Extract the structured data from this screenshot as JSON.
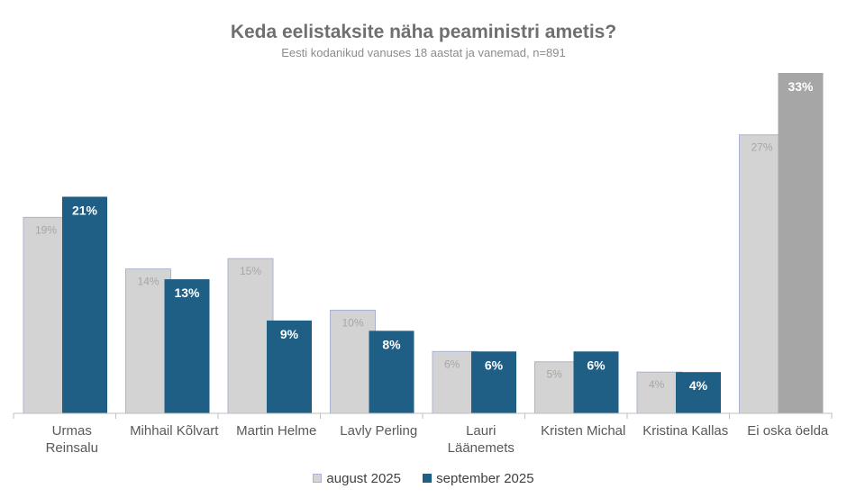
{
  "chart_data": {
    "type": "bar",
    "title": "Keda eelistaksite näha peaministri ametis?",
    "subtitle": "Eesti kodanikud vanuses 18 aastat ja vanemad, n=891",
    "categories": [
      [
        "Urmas",
        "Reinsalu"
      ],
      [
        "Mihhail Kõlvart"
      ],
      [
        "Martin Helme"
      ],
      [
        "Lavly Perling"
      ],
      [
        "Lauri",
        "Läänemets"
      ],
      [
        "Kristen Michal"
      ],
      [
        "Kristina Kallas"
      ],
      [
        "Ei oska öelda"
      ]
    ],
    "series": [
      {
        "name": "august 2025",
        "values": [
          19,
          14,
          15,
          10,
          6,
          5,
          4,
          27
        ],
        "labels": [
          "19%",
          "14%",
          "15%",
          "10%",
          "6%",
          "5%",
          "4%",
          "27%"
        ]
      },
      {
        "name": "september 2025",
        "values": [
          21,
          13,
          9,
          8,
          6,
          6,
          4,
          33
        ],
        "labels": [
          "21%",
          "13%",
          "9%",
          "8%",
          "6%",
          "6%",
          "4%",
          "33%"
        ]
      }
    ],
    "ylim": [
      0,
      33
    ],
    "grid": false,
    "legend_position": "bottom",
    "colors": {
      "august": "#d3d3d3",
      "august_border": "#a9b4d4",
      "september": "#1f5f85",
      "last_september": "#a6a6a6",
      "last_august": "#d3d3d3"
    }
  },
  "legend": [
    {
      "label": "august 2025",
      "color": "#d3d3d3"
    },
    {
      "label": "september 2025",
      "color": "#1f5f85"
    }
  ]
}
